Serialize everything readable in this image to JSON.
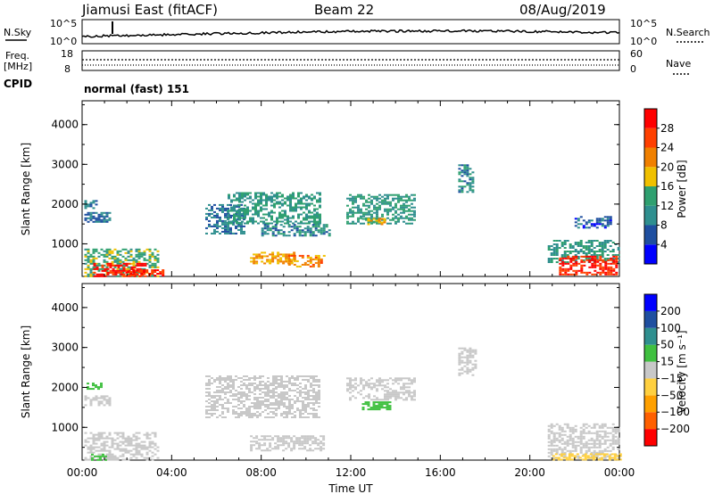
{
  "header": {
    "station": "Jiamusi East (fitACF)",
    "beam": "Beam 22",
    "date": "08/Aug/2019"
  },
  "strip_labels": {
    "nsky": "N.Sky",
    "nsearch": "N.Search",
    "freq_line1": "Freq.",
    "freq_line2": "[MHz]",
    "nave": "Nave",
    "cpid": "CPID",
    "cpid_value": "normal (fast) 151"
  },
  "noise_axis_ticks": [
    "10^5",
    "10^0"
  ],
  "freq_axis_ticks": [
    "18",
    "8"
  ],
  "nave_axis_ticks": [
    "60",
    "0"
  ],
  "colors": {
    "power": [
      "#0000ff",
      "#1f4fa0",
      "#2f8f8f",
      "#2fa070",
      "#f0c000",
      "#f08000",
      "#ff4000",
      "#ff0000"
    ],
    "velocity": [
      "#ff0000",
      "#ff6000",
      "#ffa000",
      "#ffd040",
      "#c8c8c8",
      "#40c040",
      "#2f8f8f",
      "#1f4fa0",
      "#0000ff"
    ]
  },
  "chart_data": [
    {
      "type": "heatmap",
      "name": "power",
      "ylabel": "Slant Range [km]",
      "yticks": [
        1000,
        2000,
        3000,
        4000
      ],
      "xticks": [
        "00:00",
        "04:00",
        "08:00",
        "12:00",
        "16:00",
        "20:00",
        "00:00"
      ],
      "x_hours": [
        0,
        24
      ],
      "ylim": [
        180,
        4600
      ],
      "colorbar_label": "Power [dB]",
      "colorbar_ticks": [
        4,
        8,
        12,
        16,
        20,
        24,
        28
      ],
      "colorbar_range": [
        0,
        32
      ],
      "regions": [
        {
          "x": [
            0.1,
            3.4
          ],
          "y": [
            200,
            880
          ],
          "value": 14
        },
        {
          "x": [
            0.5,
            2.8
          ],
          "y": [
            200,
            520
          ],
          "value": 30
        },
        {
          "x": [
            2.0,
            3.6
          ],
          "y": [
            200,
            360
          ],
          "value": 28
        },
        {
          "x": [
            0.1,
            1.2
          ],
          "y": [
            1550,
            1800
          ],
          "value": 8
        },
        {
          "x": [
            0.1,
            0.6
          ],
          "y": [
            1900,
            2100
          ],
          "value": 8
        },
        {
          "x": [
            5.5,
            7.2
          ],
          "y": [
            1250,
            2000
          ],
          "value": 8
        },
        {
          "x": [
            6.5,
            10.6
          ],
          "y": [
            1500,
            2300
          ],
          "value": 12
        },
        {
          "x": [
            7.5,
            9.5
          ],
          "y": [
            500,
            800
          ],
          "value": 20
        },
        {
          "x": [
            9.2,
            10.8
          ],
          "y": [
            440,
            720
          ],
          "value": 22
        },
        {
          "x": [
            8.0,
            11.0
          ],
          "y": [
            1200,
            1500
          ],
          "value": 10
        },
        {
          "x": [
            11.8,
            14.8
          ],
          "y": [
            1500,
            2250
          ],
          "value": 12
        },
        {
          "x": [
            12.5,
            13.6
          ],
          "y": [
            1500,
            1650
          ],
          "value": 18
        },
        {
          "x": [
            16.8,
            17.5
          ],
          "y": [
            2300,
            3000
          ],
          "value": 10
        },
        {
          "x": [
            20.8,
            24.0
          ],
          "y": [
            550,
            1100
          ],
          "value": 12
        },
        {
          "x": [
            21.3,
            23.9
          ],
          "y": [
            220,
            700
          ],
          "value": 28
        },
        {
          "x": [
            22.0,
            23.6
          ],
          "y": [
            1400,
            1700
          ],
          "value": 6
        }
      ]
    },
    {
      "type": "heatmap",
      "name": "velocity",
      "ylabel": "Slant Range [km]",
      "xlabel": "Time UT",
      "yticks": [
        1000,
        2000,
        3000,
        4000
      ],
      "xticks": [
        "00:00",
        "04:00",
        "08:00",
        "12:00",
        "16:00",
        "20:00",
        "00:00"
      ],
      "x_hours": [
        0,
        24
      ],
      "ylim": [
        180,
        4600
      ],
      "colorbar_label": "Velocity [m s⁻¹]",
      "colorbar_ticks": [
        "200",
        "100",
        "50",
        "15",
        "−15",
        "−50",
        "−100",
        "−200"
      ],
      "colorbar_range": [
        -250,
        250
      ],
      "regions": [
        {
          "x": [
            0.1,
            3.4
          ],
          "y": [
            200,
            880
          ],
          "value": 0
        },
        {
          "x": [
            0.4,
            1.0
          ],
          "y": [
            200,
            340
          ],
          "value": 30
        },
        {
          "x": [
            0.1,
            1.2
          ],
          "y": [
            1550,
            1800
          ],
          "value": -5
        },
        {
          "x": [
            0.2,
            0.8
          ],
          "y": [
            1950,
            2120
          ],
          "value": 40
        },
        {
          "x": [
            5.5,
            10.6
          ],
          "y": [
            1250,
            2300
          ],
          "value": 5
        },
        {
          "x": [
            7.5,
            10.8
          ],
          "y": [
            440,
            800
          ],
          "value": -2
        },
        {
          "x": [
            11.8,
            14.8
          ],
          "y": [
            1700,
            2250
          ],
          "value": 3
        },
        {
          "x": [
            12.5,
            13.8
          ],
          "y": [
            1450,
            1650
          ],
          "value": 40
        },
        {
          "x": [
            16.8,
            17.6
          ],
          "y": [
            2300,
            3000
          ],
          "value": 0
        },
        {
          "x": [
            20.8,
            24.0
          ],
          "y": [
            220,
            1100
          ],
          "value": 0
        },
        {
          "x": [
            21.0,
            24.0
          ],
          "y": [
            200,
            350
          ],
          "value": -40
        }
      ]
    }
  ]
}
